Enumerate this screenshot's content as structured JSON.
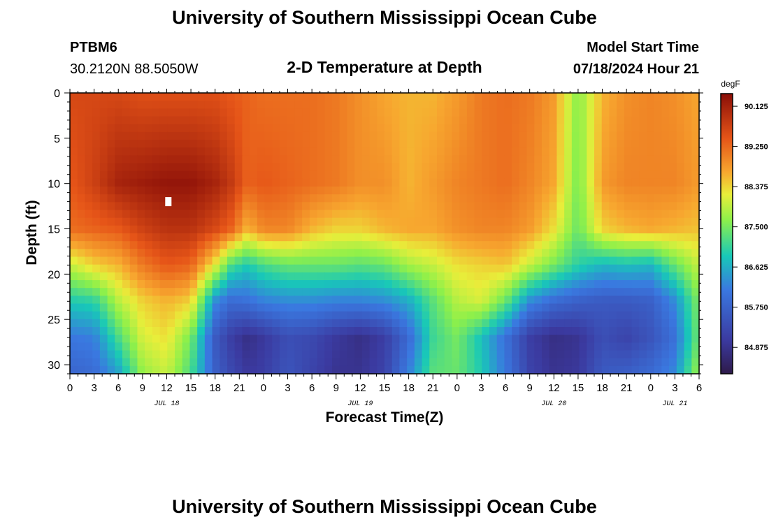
{
  "header": {
    "title": "University of Southern Mississippi Ocean Cube",
    "station": "PTBM6",
    "location": "30.2120N  88.5050W",
    "subtitle": "2-D Temperature at Depth",
    "model_label": "Model Start Time",
    "model_time": "07/18/2024 Hour 21"
  },
  "footer": {
    "title": "University of Southern Mississippi Ocean Cube"
  },
  "chart_data": {
    "type": "heatmap",
    "title": "2-D Temperature at Depth",
    "xlabel": "Forecast Time(Z)",
    "ylabel": "Depth (ft)",
    "x_ticks_hours": [
      0,
      3,
      6,
      9,
      12,
      15,
      18,
      21,
      24,
      27,
      30,
      33,
      36,
      39,
      42,
      45,
      48,
      51,
      54,
      57,
      60,
      63,
      66,
      69,
      72,
      75,
      78
    ],
    "x_tick_labels": [
      "0",
      "3",
      "6",
      "9",
      "12",
      "15",
      "18",
      "21",
      "0",
      "3",
      "6",
      "9",
      "12",
      "15",
      "18",
      "21",
      "0",
      "3",
      "6",
      "9",
      "12",
      "15",
      "18",
      "21",
      "0",
      "3",
      "6"
    ],
    "xlim": [
      0,
      78
    ],
    "date_labels": [
      {
        "hour": 12,
        "text": "JUL 18"
      },
      {
        "hour": 36,
        "text": "JUL 19"
      },
      {
        "hour": 60,
        "text": "JUL 20"
      },
      {
        "hour": 75,
        "text": "JUL 21"
      }
    ],
    "y_ticks": [
      0,
      5,
      10,
      15,
      20,
      25,
      30
    ],
    "y_tick_labels": [
      "0",
      "5",
      "10",
      "15",
      "20",
      "25",
      "30"
    ],
    "ylim": [
      0,
      31
    ],
    "colorbar": {
      "label": "degF",
      "min": 84.3,
      "max": 90.4,
      "ticks": [
        "90.125",
        "89.250",
        "88.375",
        "87.500",
        "86.625",
        "85.750",
        "84.875"
      ]
    },
    "field": {
      "depths_ft": [
        0,
        10,
        15,
        19,
        23,
        27,
        31
      ],
      "hours": [
        0,
        3,
        6,
        9,
        12,
        15,
        18,
        20,
        22,
        24,
        27,
        30,
        33,
        36,
        39,
        42,
        45,
        48,
        51,
        54,
        57,
        60,
        63,
        66,
        69,
        72,
        75,
        78
      ],
      "values_degF": [
        [
          89.6,
          89.6,
          89.6,
          89.5,
          89.5,
          89.5,
          89.5,
          89.4,
          89.3,
          89.2,
          89.2,
          89.2,
          89.1,
          88.9,
          88.7,
          88.6,
          88.6,
          88.8,
          89.1,
          89.2,
          89.1,
          88.8,
          87.6,
          88.6,
          88.9,
          89.0,
          88.9,
          88.7
        ],
        [
          89.4,
          89.7,
          90.1,
          90.2,
          90.3,
          90.3,
          90.1,
          89.8,
          89.3,
          89.4,
          89.3,
          89.2,
          89.1,
          88.9,
          88.9,
          88.6,
          88.8,
          89.0,
          89.1,
          89.2,
          89.0,
          88.7,
          87.5,
          88.8,
          89.0,
          89.0,
          89.0,
          88.8
        ],
        [
          89.2,
          89.3,
          89.4,
          89.7,
          89.9,
          89.9,
          89.6,
          89.3,
          88.6,
          89.0,
          89.0,
          88.6,
          88.4,
          88.4,
          88.6,
          88.7,
          88.7,
          88.9,
          89.0,
          89.0,
          88.8,
          88.3,
          87.4,
          88.4,
          88.6,
          88.7,
          88.6,
          88.5
        ],
        [
          88.0,
          88.4,
          88.6,
          89.1,
          89.4,
          89.3,
          88.2,
          87.2,
          86.9,
          87.2,
          87.4,
          87.4,
          87.4,
          87.3,
          87.4,
          87.8,
          88.0,
          88.3,
          88.4,
          88.5,
          88.0,
          87.5,
          87.0,
          86.7,
          86.8,
          86.7,
          87.4,
          88.0
        ],
        [
          86.9,
          87.0,
          87.9,
          88.4,
          88.6,
          88.4,
          86.3,
          85.9,
          86.0,
          86.2,
          86.3,
          86.3,
          86.2,
          86.2,
          86.3,
          86.6,
          87.3,
          87.9,
          88.1,
          87.4,
          86.3,
          85.9,
          85.7,
          85.6,
          85.6,
          85.7,
          86.3,
          87.6
        ],
        [
          86.1,
          86.2,
          87.2,
          88.1,
          88.3,
          87.5,
          85.6,
          85.1,
          84.8,
          85.0,
          85.4,
          85.3,
          85.0,
          84.8,
          85.1,
          85.9,
          87.1,
          87.5,
          86.8,
          86.0,
          85.1,
          84.8,
          84.9,
          85.4,
          85.2,
          85.5,
          86.0,
          87.5
        ],
        [
          85.8,
          85.9,
          86.5,
          87.7,
          88.0,
          87.2,
          85.7,
          85.3,
          85.0,
          85.1,
          85.5,
          85.2,
          84.9,
          84.9,
          85.2,
          86.2,
          87.3,
          87.4,
          86.9,
          86.1,
          85.2,
          84.9,
          85.0,
          85.6,
          85.7,
          85.9,
          86.3,
          87.8
        ]
      ]
    },
    "marker": {
      "hour": 12.2,
      "depth_ft": 12
    }
  }
}
